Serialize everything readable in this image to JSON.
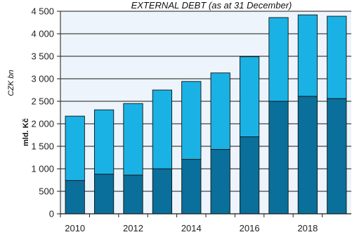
{
  "chart_data": {
    "type": "bar",
    "stacked": true,
    "title": "EXTERNAL DEBT (as at 31 December)",
    "ylabel_cz": "mld. Kč",
    "ylabel_en": "CZK bn",
    "ylim": [
      0,
      4500
    ],
    "y_ticks": [
      0,
      500,
      1000,
      1500,
      2000,
      2500,
      3000,
      3500,
      4000,
      4500
    ],
    "y_tick_labels": [
      "0",
      "500",
      "1 000",
      "1 500",
      "2 000",
      "2 500",
      "3 000",
      "3 500",
      "4 000",
      "4 500"
    ],
    "categories": [
      "2010",
      "2011",
      "2012",
      "2013",
      "2014",
      "2015",
      "2016",
      "2017",
      "2018",
      "2019"
    ],
    "x_tick_labels": [
      "2010",
      "",
      "2012",
      "",
      "2014",
      "",
      "2016",
      "",
      "2018",
      ""
    ],
    "series": [
      {
        "color": "#0a6f9a",
        "values": [
          740,
          880,
          860,
          1000,
          1210,
          1430,
          1710,
          2500,
          2610,
          2560
        ]
      },
      {
        "color": "#1ab2e4",
        "values": [
          1430,
          1430,
          1590,
          1750,
          1730,
          1700,
          1780,
          1860,
          1810,
          1830
        ]
      }
    ],
    "grid": true,
    "plot_background": "#eef4fb"
  }
}
